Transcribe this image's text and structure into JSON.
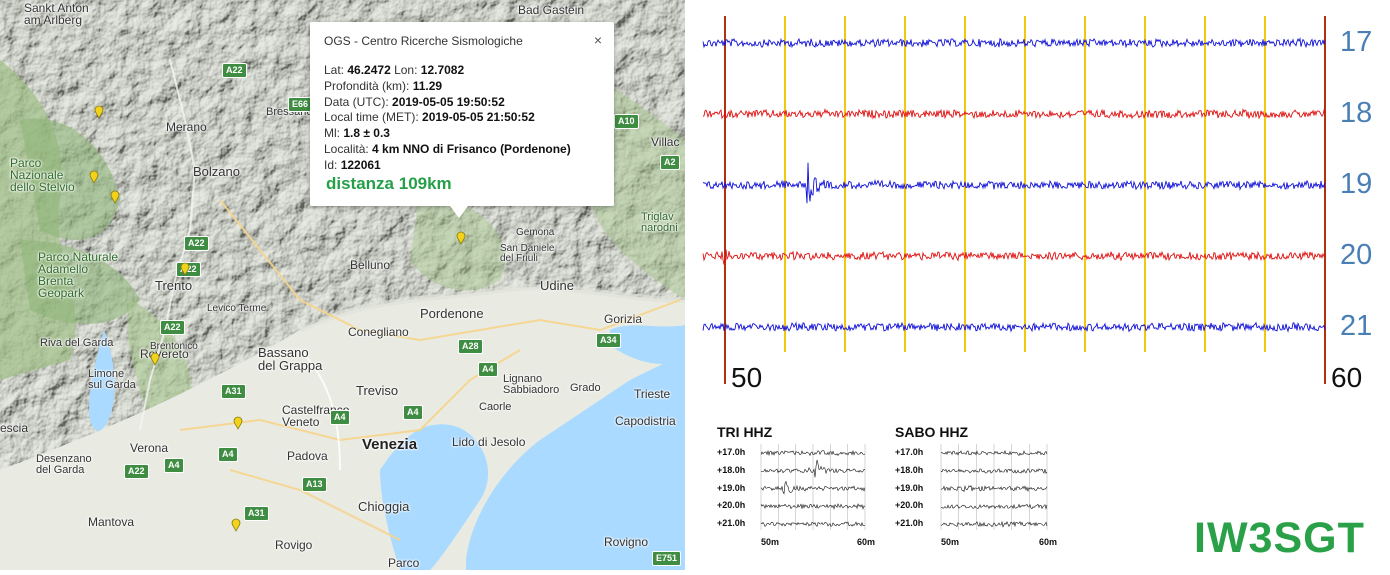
{
  "map": {
    "places": [
      {
        "name": "Sankt Anton am Arlberg",
        "text": "Sankt Anton\nam Arlberg"
      },
      {
        "name": "Bad Gastein",
        "text": "Bad Gastein"
      },
      {
        "name": "Merano",
        "text": "Merano"
      },
      {
        "name": "Bressanone",
        "text": "Bressanone"
      },
      {
        "name": "Bolzano",
        "text": "Bolzano"
      },
      {
        "name": "Parco Nazionale dello Stelvio",
        "text": "Parco\nNazionale\ndello Stelvio"
      },
      {
        "name": "Parco Naturale Adamello Brenta Geopark",
        "text": "Parco Naturale\nAdamello\nBrenta\nGeopark"
      },
      {
        "name": "Trento",
        "text": "Trento"
      },
      {
        "name": "Levico Terme",
        "text": "Levico Terme"
      },
      {
        "name": "Riva del Garda",
        "text": "Riva del Garda"
      },
      {
        "name": "Rovereto",
        "text": "Rovereto"
      },
      {
        "name": "Limone sul Garda",
        "text": "Limone\nsul Garda"
      },
      {
        "name": "Belluno",
        "text": "Belluno"
      },
      {
        "name": "Conegliano",
        "text": "Conegliano"
      },
      {
        "name": "Bassano del Grappa",
        "text": "Bassano\ndel Grappa"
      },
      {
        "name": "Pordenone",
        "text": "Pordenone"
      },
      {
        "name": "Udine",
        "text": "Udine"
      },
      {
        "name": "San Daniele del Friuli",
        "text": "San Daniele\ndel Friuli"
      },
      {
        "name": "Gemona",
        "text": "Gemona"
      },
      {
        "name": "Gorizia",
        "text": "Gorizia"
      },
      {
        "name": "Treviso",
        "text": "Treviso"
      },
      {
        "name": "Castelfranco Veneto",
        "text": "Castelfranco\nVeneto"
      },
      {
        "name": "Venezia",
        "text": "Venezia"
      },
      {
        "name": "Lignano Sabbiadoro",
        "text": "Lignano\nSabbiadoro"
      },
      {
        "name": "Grado",
        "text": "Grado"
      },
      {
        "name": "Caorle",
        "text": "Caorle"
      },
      {
        "name": "Lido di Jesolo",
        "text": "Lido di Jesolo"
      },
      {
        "name": "Trieste",
        "text": "Trieste"
      },
      {
        "name": "Capodistria",
        "text": "Capodistria"
      },
      {
        "name": "Verona",
        "text": "Verona"
      },
      {
        "name": "Desenzano del Garda",
        "text": "Desenzano\ndel Garda"
      },
      {
        "name": "Padova",
        "text": "Padova"
      },
      {
        "name": "Chioggia",
        "text": "Chioggia"
      },
      {
        "name": "Mantova",
        "text": "Mantova"
      },
      {
        "name": "Rovigo",
        "text": "Rovigo"
      },
      {
        "name": "Rovigno",
        "text": "Rovigno"
      },
      {
        "name": "Parco",
        "text": "Parco"
      },
      {
        "name": "Brescia",
        "text": "escia"
      },
      {
        "name": "Villach",
        "text": "Villac"
      },
      {
        "name": "Triglav National Park",
        "text": "Triglav\nnarodni"
      },
      {
        "name": "Brentonico",
        "text": "Brentonico"
      }
    ],
    "roads": [
      "A22",
      "E66",
      "A10",
      "A2",
      "A22",
      "A22",
      "A22",
      "A28",
      "A34",
      "A4",
      "A31",
      "A4",
      "A4",
      "A4",
      "A13",
      "A31",
      "A22",
      "E751",
      "A4"
    ],
    "popup": {
      "title": "OGS - Centro Ricerche Sismologiche",
      "close": "×",
      "rows": [
        {
          "label": "Lat: ",
          "value": "46.2472",
          "label2": " Lon: ",
          "value2": "12.7082"
        },
        {
          "label": "Profondità (km): ",
          "value": "11.29"
        },
        {
          "label": "Data (UTC): ",
          "value": "2019-05-05 19:50:52"
        },
        {
          "label": "Local time (MET): ",
          "value": "2019-05-05 21:50:52"
        },
        {
          "label": "Ml: ",
          "value": "1.8 ± 0.3"
        },
        {
          "label": "Località: ",
          "value": "4 km NNO di Frisanco (Pordenone)"
        },
        {
          "label": "Id: ",
          "value": "122061"
        }
      ],
      "distance": "distanza 109km"
    }
  },
  "seismogram": {
    "hours": [
      "17",
      "18",
      "19",
      "20",
      "21"
    ],
    "trace_colors": [
      "#1010d8",
      "#e01010",
      "#1010d8",
      "#e01010",
      "#1010d8"
    ],
    "minute_start": "50",
    "minute_end": "60",
    "marker_color": "#b03010",
    "grid_color": "#f0c810"
  },
  "helicorders": [
    {
      "title": "TRI HHZ",
      "rows": [
        "+17.0h",
        "+18.0h",
        "+19.0h",
        "+20.0h",
        "+21.0h"
      ],
      "min_start": "50m",
      "min_end": "60m"
    },
    {
      "title": "SABO HHZ",
      "rows": [
        "+17.0h",
        "+18.0h",
        "+19.0h",
        "+20.0h",
        "+21.0h"
      ],
      "min_start": "50m",
      "min_end": "60m"
    }
  ],
  "callsign": "IW3SGT",
  "colors": {
    "callsign": "#2aa148",
    "distance": "#26a048",
    "hours": "#4a7fb5",
    "pin": "#f2d21b"
  }
}
